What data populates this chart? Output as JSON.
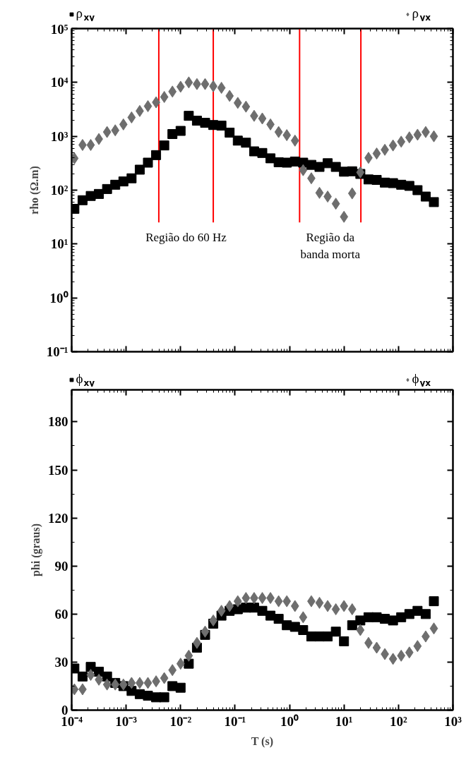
{
  "chart_data": [
    {
      "type": "scatter",
      "log": "xy",
      "legend": "top",
      "tick_labels": "y",
      "ylabel": "rho (Ω.m)",
      "x": [
        0.0001122,
        0.0001585,
        0.0002239,
        0.0003162,
        0.0004467,
        0.000631,
        0.0008913,
        0.001259,
        0.001778,
        0.002512,
        0.003548,
        0.005012,
        0.007079,
        0.01,
        0.01413,
        0.01995,
        0.02818,
        0.03981,
        0.05623,
        0.07943,
        0.1122,
        0.1585,
        0.2239,
        0.3162,
        0.4467,
        0.631,
        0.8913,
        1.259,
        1.778,
        2.512,
        3.548,
        5.012,
        7.079,
        10,
        14.13,
        19.95,
        28.18,
        39.81,
        56.23,
        79.43,
        112.2,
        158.5,
        223.9,
        316.2,
        446.7
      ],
      "series": [
        {
          "name": "ρ$_{xy}$",
          "color": "#000000",
          "marker": "square",
          "values": [
            45,
            65,
            78,
            85,
            105,
            126,
            145,
            166,
            240,
            324,
            447,
            676,
            1100,
            1260,
            2400,
            1950,
            1780,
            1620,
            1580,
            1170,
            830,
            760,
            525,
            490,
            390,
            330,
            324,
            340,
            324,
            295,
            270,
            316,
            270,
            220,
            224,
            200,
            158,
            155,
            138,
            135,
            126,
            120,
            100,
            76,
            60
          ]
        },
        {
          "name": "ρ$_{yx}$",
          "color": "#6e6e6e",
          "marker": "diamond",
          "values": [
            390,
            690,
            690,
            890,
            1200,
            1290,
            1660,
            2240,
            2950,
            3630,
            4270,
            5370,
            6760,
            8320,
            10000,
            9330,
            9330,
            8510,
            7940,
            5620,
            4170,
            3550,
            2400,
            2140,
            1660,
            1200,
            1050,
            830,
            235,
            166,
            89,
            76,
            56,
            32,
            87,
            214,
            398,
            479,
            562,
            676,
            794,
            955,
            1070,
            1200,
            1000
          ]
        }
      ],
      "xlim": [
        0.0001,
        1000
      ],
      "xticks": [
        {
          "value": 0.0001,
          "label": null
        },
        {
          "value": 0.001,
          "label": null
        },
        {
          "value": 0.01,
          "label": null
        },
        {
          "value": 0.1,
          "label": null
        },
        {
          "value": 1,
          "label": null
        },
        {
          "value": 10,
          "label": null
        },
        {
          "value": 100,
          "label": null
        },
        {
          "value": 1000,
          "label": null
        }
      ],
      "ylim": [
        0.1,
        100000
      ],
      "yticks": [
        {
          "value": 0.1,
          "label": "10⁻¹"
        },
        {
          "value": 1,
          "label": "10⁰"
        },
        {
          "value": 10,
          "label": "10¹"
        },
        {
          "value": 100,
          "label": "10²"
        },
        {
          "value": 1000,
          "label": "10³"
        },
        {
          "value": 10000,
          "label": "10⁴"
        },
        {
          "value": 100000,
          "label": "10⁵"
        }
      ],
      "ref_lines": [
        {
          "axis": "x",
          "value": 0.00398,
          "color": "#ff0000"
        },
        {
          "axis": "x",
          "value": 0.0398,
          "color": "#ff0000"
        },
        {
          "axis": "x",
          "value": 1.53,
          "color": "#ff0000"
        },
        {
          "axis": "x",
          "value": 20.4,
          "color": "#ff0000"
        }
      ],
      "annotations": [
        "Região do 60 Hz",
        "Região da\nbanda morta"
      ]
    },
    {
      "type": "scatter",
      "log": "x",
      "legend": "top",
      "xlabel": "T (s)",
      "ylabel": "phi (graus)",
      "x": [
        0.0001122,
        0.0001585,
        0.0002239,
        0.0003162,
        0.0004467,
        0.000631,
        0.0008913,
        0.001259,
        0.001778,
        0.002512,
        0.003548,
        0.005012,
        0.007079,
        0.01,
        0.01413,
        0.01995,
        0.02818,
        0.03981,
        0.05623,
        0.07943,
        0.1122,
        0.1585,
        0.2239,
        0.3162,
        0.4467,
        0.631,
        0.8913,
        1.259,
        1.778,
        2.512,
        3.548,
        5.012,
        7.079,
        10,
        14.13,
        19.95,
        28.18,
        39.81,
        56.23,
        79.43,
        112.2,
        158.5,
        223.9,
        316.2,
        446.7
      ],
      "series": [
        {
          "name": "ϕ$_{xy}$",
          "color": "#000000",
          "marker": "square",
          "values": [
            26,
            21,
            27,
            24,
            21,
            17,
            15,
            12,
            10,
            9,
            8,
            8,
            15,
            14,
            29,
            39,
            47,
            54,
            59,
            62,
            63,
            64,
            64,
            62,
            59,
            57,
            53,
            52,
            50,
            46,
            46,
            46,
            49,
            43,
            53,
            56,
            58,
            58,
            57,
            56,
            58,
            60,
            62,
            60,
            68
          ]
        },
        {
          "name": "ϕ$_{yx}$",
          "color": "#6e6e6e",
          "marker": "diamond",
          "values": [
            13,
            13,
            22,
            19,
            16,
            16,
            16,
            17,
            17,
            17,
            18,
            20,
            25,
            29,
            34,
            42,
            49,
            56,
            62,
            65,
            68,
            70,
            70,
            70,
            70,
            68,
            68,
            65,
            58,
            68,
            67,
            65,
            63,
            65,
            63,
            50,
            42,
            39,
            35,
            32,
            34,
            36,
            40,
            46,
            51
          ]
        }
      ],
      "xlim": [
        0.0001,
        1000
      ],
      "xticks": [
        {
          "value": 0.0001,
          "label": "10⁻⁴"
        },
        {
          "value": 0.001,
          "label": "10⁻³"
        },
        {
          "value": 0.01,
          "label": "10⁻²"
        },
        {
          "value": 0.1,
          "label": "10⁻¹"
        },
        {
          "value": 1,
          "label": "10⁰"
        },
        {
          "value": 10,
          "label": "10¹"
        },
        {
          "value": 100,
          "label": "10²"
        },
        {
          "value": 1000,
          "label": "10³"
        }
      ],
      "ylim": [
        0,
        200
      ],
      "yticks": [
        0,
        30,
        60,
        90,
        120,
        150,
        180
      ]
    }
  ]
}
